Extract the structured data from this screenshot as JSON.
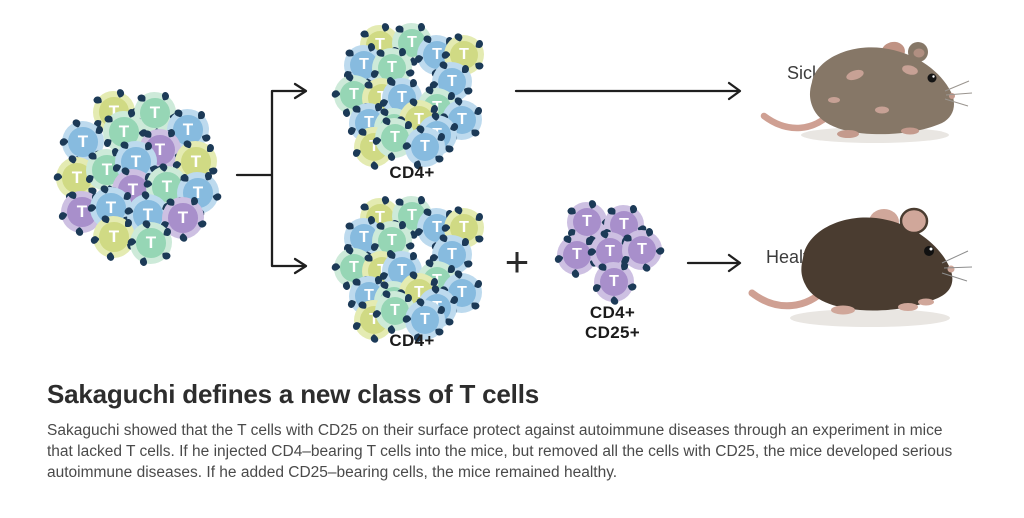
{
  "heading": {
    "title": "Sakaguchi defines a new class of T cells",
    "description_lines": [
      "Sakaguchi showed that the T cells with CD25 on their surface protect against autoimmune diseases through an experiment in mice",
      "that lacked T cells. If he injected CD4–bearing T cells into the mice, but removed all the cells with CD25, the mice developed serious",
      "autoimmune diseases. If he added CD25–bearing cells, the mice remained healthy."
    ]
  },
  "labels": {
    "t_cell": "T",
    "cd4_top": "CD4+",
    "cd4_bottom": "CD4+",
    "treg_line1": "CD4+",
    "treg_line2": "CD25+",
    "plus": "+",
    "sick": "Sick",
    "healthy": "Healthy"
  },
  "colors": {
    "background": "#ffffff",
    "arrow": "#1f1f1f",
    "title_text": "#2d2d2d",
    "body_text": "#4a4a4a",
    "label_text": "#1b1b1b",
    "mouse_label_text": "#3c3c3c",
    "receptor": "#1c3a57",
    "lime_outer": "#e4ebb2",
    "lime_inner": "#d0da84",
    "green_outer": "#cdead9",
    "green_inner": "#96d6b5",
    "blue_outer": "#bddaee",
    "blue_inner": "#87bbdf",
    "purple_outer": "#cdc0e2",
    "purple_inner": "#a88fcb",
    "t_text": "#ffffff",
    "sick_mouse_body": "#867767",
    "healthy_mouse_body": "#4a3c30",
    "mouse_pink": "#cfa093",
    "mouse_shadow": "#e9e6e2"
  },
  "clusters": {
    "mixed": {
      "cell_size": 42,
      "cells": [
        [
          59,
          24,
          "lime"
        ],
        [
          100,
          25,
          "green"
        ],
        [
          133,
          42,
          "blue"
        ],
        [
          28,
          54,
          "blue"
        ],
        [
          69,
          44,
          "green"
        ],
        [
          105,
          62,
          "purple"
        ],
        [
          141,
          74,
          "lime"
        ],
        [
          22,
          90,
          "lime"
        ],
        [
          52,
          82,
          "green"
        ],
        [
          81,
          74,
          "blue"
        ],
        [
          78,
          102,
          "purple"
        ],
        [
          112,
          99,
          "green"
        ],
        [
          143,
          105,
          "blue"
        ],
        [
          27,
          124,
          "purple"
        ],
        [
          56,
          120,
          "blue"
        ],
        [
          93,
          127,
          "blue"
        ],
        [
          128,
          130,
          "purple"
        ],
        [
          59,
          149,
          "lime"
        ],
        [
          96,
          155,
          "green"
        ]
      ]
    },
    "cd4_top": {
      "cell_size": 40,
      "cells": [
        [
          48,
          23,
          "lime"
        ],
        [
          80,
          21,
          "green"
        ],
        [
          105,
          33,
          "blue"
        ],
        [
          132,
          33,
          "lime"
        ],
        [
          32,
          43,
          "blue"
        ],
        [
          60,
          46,
          "green"
        ],
        [
          120,
          60,
          "blue"
        ],
        [
          22,
          73,
          "green"
        ],
        [
          50,
          76,
          "lime"
        ],
        [
          70,
          76,
          "blue"
        ],
        [
          105,
          86,
          "green"
        ],
        [
          130,
          98,
          "blue"
        ],
        [
          37,
          101,
          "blue"
        ],
        [
          62,
          106,
          "green"
        ],
        [
          87,
          98,
          "lime"
        ],
        [
          105,
          113,
          "blue"
        ],
        [
          42,
          125,
          "lime"
        ],
        [
          63,
          116,
          "green"
        ],
        [
          93,
          125,
          "blue"
        ]
      ]
    },
    "cd4_bottom": {
      "cell_size": 40,
      "cells": [
        [
          48,
          23,
          "lime"
        ],
        [
          80,
          21,
          "green"
        ],
        [
          105,
          33,
          "blue"
        ],
        [
          132,
          33,
          "lime"
        ],
        [
          32,
          43,
          "blue"
        ],
        [
          60,
          46,
          "green"
        ],
        [
          120,
          60,
          "blue"
        ],
        [
          22,
          73,
          "green"
        ],
        [
          50,
          76,
          "lime"
        ],
        [
          70,
          76,
          "blue"
        ],
        [
          105,
          86,
          "green"
        ],
        [
          130,
          98,
          "blue"
        ],
        [
          37,
          101,
          "blue"
        ],
        [
          62,
          106,
          "green"
        ],
        [
          87,
          98,
          "lime"
        ],
        [
          105,
          113,
          "blue"
        ],
        [
          42,
          125,
          "lime"
        ],
        [
          63,
          116,
          "green"
        ],
        [
          93,
          125,
          "blue"
        ]
      ]
    },
    "treg": {
      "cell_size": 40,
      "cells": [
        [
          27,
          24,
          "purple"
        ],
        [
          64,
          27,
          "purple"
        ],
        [
          17,
          57,
          "purple"
        ],
        [
          50,
          54,
          "purple"
        ],
        [
          82,
          52,
          "purple"
        ],
        [
          54,
          84,
          "purple"
        ]
      ]
    }
  }
}
